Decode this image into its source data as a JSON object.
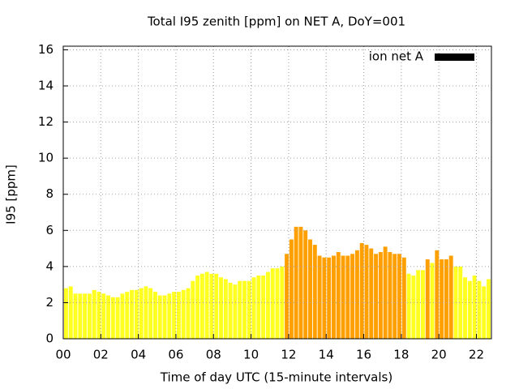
{
  "chart_data": {
    "type": "bar",
    "title": "Total I95 zenith [ppm] on NET A, DoY=001",
    "xlabel": "Time of day UTC (15-minute intervals)",
    "ylabel": "I95 [ppm]",
    "x": [
      0,
      0.25,
      0.5,
      0.75,
      1,
      1.25,
      1.5,
      1.75,
      2,
      2.25,
      2.5,
      2.75,
      3,
      3.25,
      3.5,
      3.75,
      4,
      4.25,
      4.5,
      4.75,
      5,
      5.25,
      5.5,
      5.75,
      6,
      6.25,
      6.5,
      6.75,
      7,
      7.25,
      7.5,
      7.75,
      8,
      8.25,
      8.5,
      8.75,
      9,
      9.25,
      9.5,
      9.75,
      10,
      10.25,
      10.5,
      10.75,
      11,
      11.25,
      11.5,
      11.75,
      12,
      12.25,
      12.5,
      12.75,
      13,
      13.25,
      13.5,
      13.75,
      14,
      14.25,
      14.5,
      14.75,
      15,
      15.25,
      15.5,
      15.75,
      16,
      16.25,
      16.5,
      16.75,
      17,
      17.25,
      17.5,
      17.75,
      18,
      18.25,
      18.5,
      18.75,
      19,
      19.25,
      19.5,
      19.75,
      20,
      20.25,
      20.5,
      20.75,
      21,
      21.25,
      21.5,
      21.75,
      22,
      22.25,
      22.5
    ],
    "series": [
      {
        "name": "ion net A",
        "color": "#000000",
        "values": [
          2.8,
          2.9,
          2.5,
          2.5,
          2.5,
          2.5,
          2.7,
          2.6,
          2.5,
          2.4,
          2.3,
          2.3,
          2.5,
          2.6,
          2.7,
          2.7,
          2.8,
          2.9,
          2.8,
          2.6,
          2.4,
          2.4,
          2.5,
          2.6,
          2.6,
          2.7,
          2.8,
          3.2,
          3.5,
          3.6,
          3.7,
          3.6,
          3.6,
          3.4,
          3.3,
          3.1,
          3.0,
          3.2,
          3.2,
          3.2,
          3.4,
          3.5,
          3.5,
          3.7,
          3.9,
          3.9,
          4.0,
          4.7,
          5.5,
          6.2,
          6.2,
          6.0,
          5.5,
          5.2,
          4.6,
          4.5,
          4.5,
          4.6,
          4.8,
          4.6,
          4.6,
          4.7,
          4.9,
          5.3,
          5.2,
          5.0,
          4.7,
          4.8,
          5.1,
          4.8,
          4.7,
          4.7,
          4.5,
          3.6,
          3.5,
          3.8,
          3.8,
          4.4,
          4.2,
          4.9,
          4.4,
          4.4,
          4.6,
          4.0,
          4.0,
          3.4,
          3.2,
          3.5,
          3.2,
          2.9,
          3.3
        ],
        "colors": [
          "#ffff20",
          "#ffff20",
          "#ffff20",
          "#ffff20",
          "#ffff20",
          "#ffff20",
          "#ffff20",
          "#ffff20",
          "#ffff20",
          "#ffff20",
          "#ffff20",
          "#ffff20",
          "#ffff20",
          "#ffff20",
          "#ffff20",
          "#ffff20",
          "#ffff20",
          "#ffff20",
          "#ffff20",
          "#ffff20",
          "#ffff20",
          "#ffff20",
          "#ffff20",
          "#ffff20",
          "#ffff20",
          "#ffff20",
          "#ffff20",
          "#ffff20",
          "#ffff20",
          "#ffff20",
          "#ffff20",
          "#ffff20",
          "#ffff20",
          "#ffff20",
          "#ffff20",
          "#ffff20",
          "#ffff20",
          "#ffff20",
          "#ffff20",
          "#ffff20",
          "#ffff20",
          "#ffff20",
          "#ffff20",
          "#ffff20",
          "#ffff20",
          "#ffff20",
          "#ffff20",
          "#ffa000",
          "#ffa000",
          "#ffa000",
          "#ffa000",
          "#ffa000",
          "#ffa000",
          "#ffa000",
          "#ffa000",
          "#ffa000",
          "#ffa000",
          "#ffa000",
          "#ffa000",
          "#ffa000",
          "#ffa000",
          "#ffa000",
          "#ffa000",
          "#ffa000",
          "#ffa000",
          "#ffa000",
          "#ffa000",
          "#ffa000",
          "#ffa000",
          "#ffa000",
          "#ffa000",
          "#ffa000",
          "#ffa000",
          "#ffff20",
          "#ffff20",
          "#ffff20",
          "#ffff20",
          "#ffa000",
          "#ffff20",
          "#ffa000",
          "#ffa000",
          "#ffa000",
          "#ffa000",
          "#ffff20",
          "#ffff20",
          "#ffff20",
          "#ffff20",
          "#ffff20",
          "#ffff20",
          "#ffff20",
          "#ffff20"
        ]
      }
    ],
    "xlim": [
      0,
      22.8
    ],
    "ylim": [
      0,
      16.2
    ],
    "xticks": [
      {
        "value": 0,
        "label": "00"
      },
      {
        "value": 2,
        "label": "02"
      },
      {
        "value": 4,
        "label": "04"
      },
      {
        "value": 6,
        "label": "06"
      },
      {
        "value": 8,
        "label": "08"
      },
      10,
      12,
      14,
      16,
      18,
      20,
      22
    ],
    "yticks": [
      0,
      2,
      4,
      6,
      8,
      10,
      12,
      14,
      16
    ],
    "grid": true,
    "legend": "top-right"
  }
}
